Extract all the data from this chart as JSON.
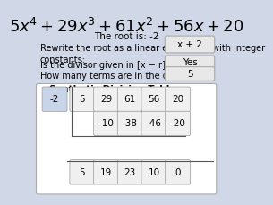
{
  "title": "$5x^4+29x^3+61x^2+56x+20$",
  "subtitle": "The root is: -2",
  "q1_label": "Rewrite the root as a linear expression with integer\nconstants:",
  "q1_answer": "x + 2",
  "q2_label": "Is the divisor given in [x − r] form?",
  "q2_answer": "Yes",
  "q3_label": "How many terms are in the dividend?",
  "q3_answer": "5",
  "table_title": "Synthetic Division Table",
  "divisor": "-2",
  "row1": [
    "5",
    "29",
    "61",
    "56",
    "20"
  ],
  "row2": [
    "-10",
    "-38",
    "-46",
    "-20"
  ],
  "row3": [
    "5",
    "19",
    "23",
    "10",
    "0"
  ],
  "bg_color": "#d0d8e8",
  "answer_box_color": "#e8e8e8",
  "table_bg": "#ffffff",
  "cell_bg": "#f0f0f0",
  "divisor_bg": "#c8d4e8",
  "title_fontsize": 13,
  "body_fontsize": 7,
  "answer_fontsize": 7.5
}
